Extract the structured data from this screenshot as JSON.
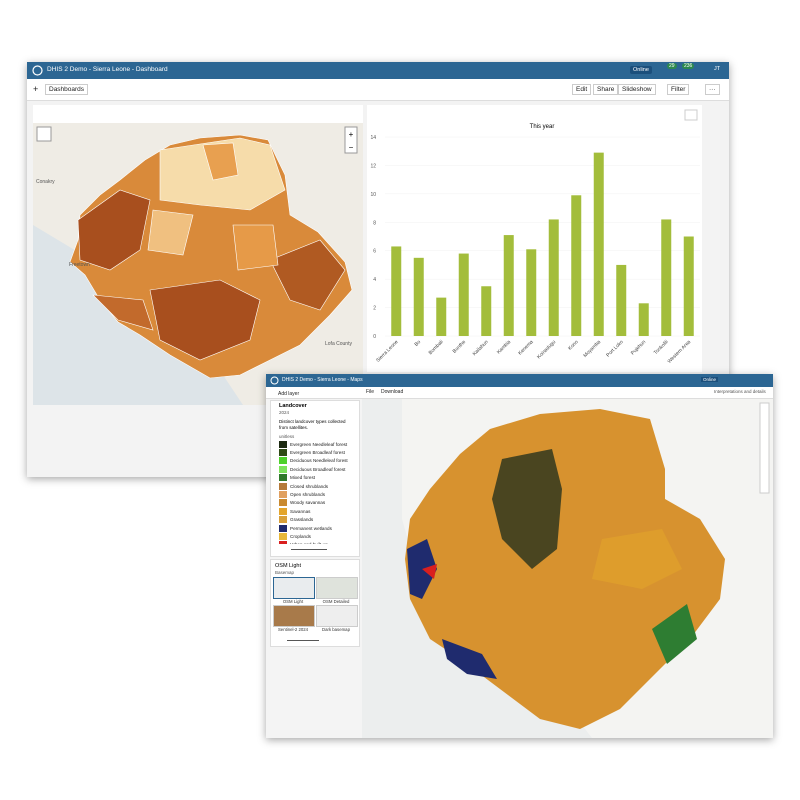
{
  "dashboard_window": {
    "title": "DHIS 2 Demo - Sierra Leone - Dashboard",
    "status": "Online",
    "badges": [
      "29",
      "236"
    ],
    "user": "JT",
    "toolbar": {
      "add": "+",
      "dashboards": "Dashboards",
      "edit": "Edit",
      "share": "Share",
      "slideshow": "Slideshow",
      "filter": "Filter",
      "more": "···"
    },
    "map_labels": [
      "Conakry",
      "Freetown",
      "Lofa County"
    ]
  },
  "chart_data": {
    "type": "bar",
    "title": "This year",
    "categories": [
      "Sierra Leone",
      "Bo",
      "Bombali",
      "Bonthe",
      "Kailahun",
      "Kambia",
      "Kenema",
      "Koinadugu",
      "Kono",
      "Moyamba",
      "Port Loko",
      "Pujehun",
      "Tonkolili",
      "Western Area"
    ],
    "values": [
      6.3,
      5.5,
      2.7,
      5.8,
      3.5,
      7.1,
      6.1,
      8.2,
      9.9,
      12.9,
      5.0,
      2.3,
      8.2,
      7.0
    ],
    "color": "#a3bd3b",
    "ylim": [
      0,
      14
    ],
    "yticks": [
      0,
      2,
      4,
      6,
      8,
      10,
      12,
      14
    ],
    "grid": true
  },
  "maps_window": {
    "title": "DHIS 2 Demo - Sierra Leone - Maps",
    "status": "Online",
    "menu": [
      "File",
      "Download"
    ],
    "details": "Interpretations and details",
    "add_layer": "Add layer",
    "layer": {
      "name": "Landcover",
      "period": "2024",
      "description": "Distinct landcover types collected from satellites.",
      "unit": "unitless",
      "legend": [
        {
          "name": "Evergreen Needleleaf forest",
          "color": "#1d2a12"
        },
        {
          "name": "Evergreen Broadleaf forest",
          "color": "#2f4a16"
        },
        {
          "name": "Deciduous Needleleaf forest",
          "color": "#4dd12a"
        },
        {
          "name": "Deciduous Broadleaf forest",
          "color": "#7ce35a"
        },
        {
          "name": "Mixed forest",
          "color": "#2f7a2a"
        },
        {
          "name": "Closed shrublands",
          "color": "#b57a3a"
        },
        {
          "name": "Open shrublands",
          "color": "#e0a060"
        },
        {
          "name": "Woody savannas",
          "color": "#c98a30"
        },
        {
          "name": "Savannas",
          "color": "#e3a52c"
        },
        {
          "name": "Grasslands",
          "color": "#d8a03a"
        },
        {
          "name": "Permanent wetlands",
          "color": "#1f2b6e"
        },
        {
          "name": "Croplands",
          "color": "#e8b83a"
        },
        {
          "name": "Urban and built-up",
          "color": "#d91f1f"
        }
      ]
    },
    "basemap": {
      "name": "OSM Light",
      "kind": "Basemap",
      "options": [
        "OSM Light",
        "OSM Detailed",
        "Sentinel-2 2024",
        "Dark basemap"
      ]
    }
  }
}
